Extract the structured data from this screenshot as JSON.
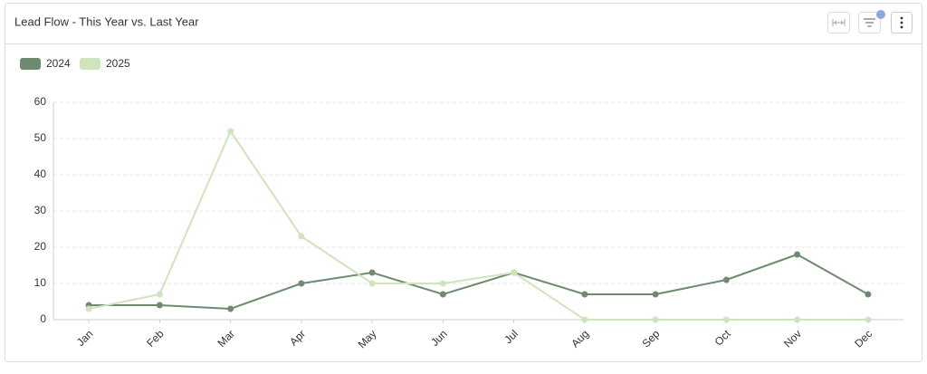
{
  "chart_data": {
    "type": "line",
    "title": "Lead Flow - This Year vs. Last Year",
    "categories": [
      "Jan",
      "Feb",
      "Mar",
      "Apr",
      "May",
      "Jun",
      "Jul",
      "Aug",
      "Sep",
      "Oct",
      "Nov",
      "Dec"
    ],
    "series": [
      {
        "name": "2024",
        "color": "#6e8b70",
        "values": [
          4,
          4,
          3,
          10,
          13,
          7,
          13,
          7,
          7,
          11,
          18,
          7
        ]
      },
      {
        "name": "2025",
        "color": "#cfe3bc",
        "values": [
          3,
          7,
          52,
          23,
          10,
          10,
          13,
          0,
          0,
          0,
          0,
          0
        ]
      }
    ],
    "ylim": [
      0,
      60
    ],
    "yticks": [
      0,
      10,
      20,
      30,
      40,
      50,
      60
    ],
    "grid": true,
    "legend": "top-left"
  }
}
